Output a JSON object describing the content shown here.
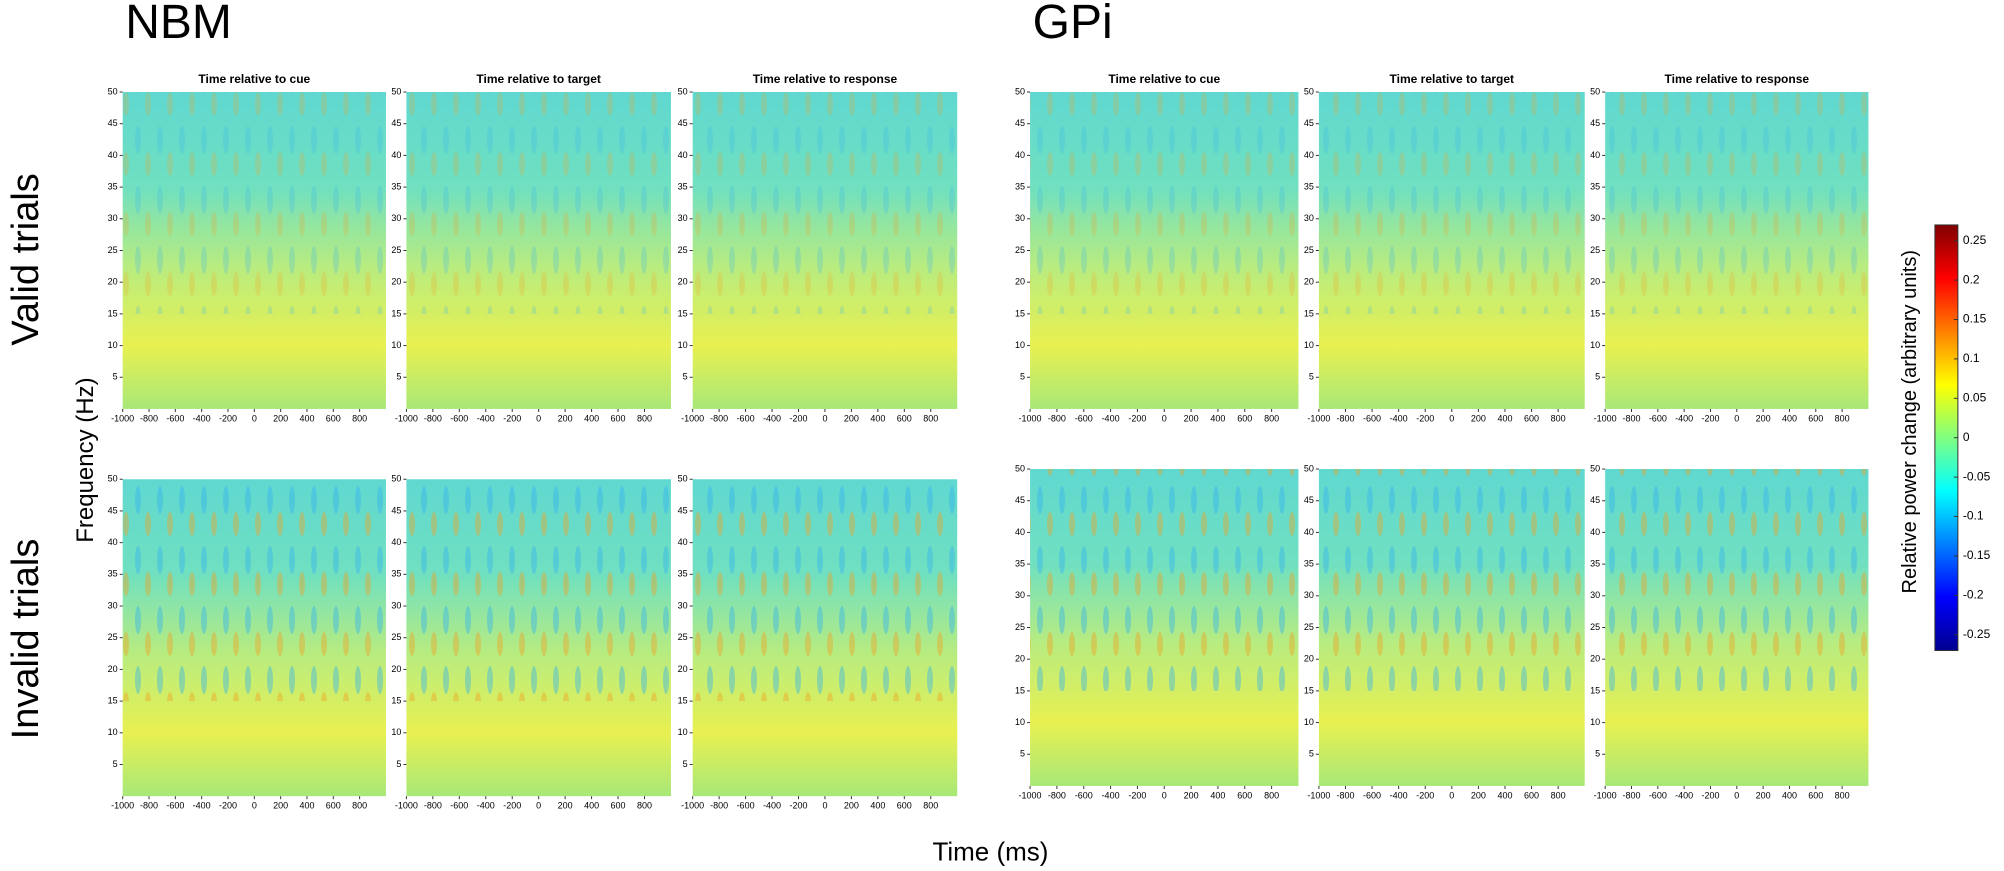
{
  "chart_data": {
    "type": "heatmap",
    "groups": [
      "NBM",
      "GPi"
    ],
    "rows": [
      "Valid trials",
      "Invalid trials"
    ],
    "panel_titles": [
      "Time relative to cue",
      "Time relative to target",
      "Time relative to response"
    ],
    "y_label": "Frequency (Hz)",
    "x_label": "Time (ms)",
    "xlim": [
      -1000,
      1000
    ],
    "xticks": [
      -1000,
      -800,
      -600,
      -400,
      -200,
      0,
      200,
      400,
      600,
      800
    ],
    "ylim": [
      0,
      50
    ],
    "yticks": [
      5,
      10,
      15,
      20,
      25,
      30,
      35,
      40,
      45,
      50
    ],
    "colorbar": {
      "label": "Relative power change (arbitrary units)",
      "lim": [
        -0.27,
        0.27
      ],
      "ticks": [
        -0.25,
        -0.2,
        -0.15,
        -0.1,
        -0.05,
        0,
        0.05,
        0.1,
        0.15,
        0.2,
        0.25
      ]
    }
  }
}
